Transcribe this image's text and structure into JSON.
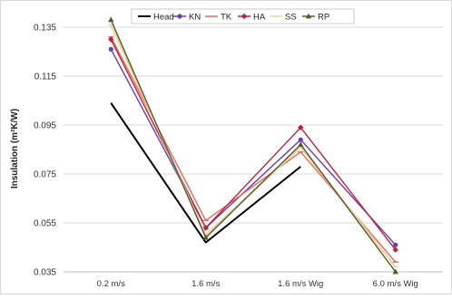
{
  "chart_data": {
    "type": "line",
    "title": "",
    "xlabel": "",
    "ylabel": "Insulation (m²K/W)",
    "categories": [
      "0.2 m/s",
      "1.6 m/s",
      "1.6 m/s Wig",
      "6.0 m/s Wig"
    ],
    "ylim": [
      0.035,
      0.135
    ],
    "yticks": [
      "0.135",
      "0.115",
      "0.095",
      "0.075",
      "0.055",
      "0.035"
    ],
    "ytick_values": [
      0.135,
      0.115,
      0.095,
      0.075,
      0.055,
      0.035
    ],
    "grid": true,
    "legend": "top",
    "series": [
      {
        "name": "Head",
        "color": "#000000",
        "marker": "none",
        "values": [
          0.104,
          0.047,
          0.078,
          null
        ]
      },
      {
        "name": "KN",
        "color": "#6a3fa8",
        "marker": "circle",
        "values": [
          0.126,
          0.053,
          0.089,
          0.046
        ]
      },
      {
        "name": "TK",
        "color": "#e8685f",
        "marker": "line",
        "values": [
          0.131,
          0.056,
          0.084,
          0.039
        ]
      },
      {
        "name": "HA",
        "color": "#c0203a",
        "marker": "diamond",
        "values": [
          0.13,
          0.053,
          0.094,
          0.044
        ]
      },
      {
        "name": "SS",
        "color": "#f1d3a0",
        "marker": "line",
        "values": [
          0.136,
          0.05,
          0.086,
          0.037
        ]
      },
      {
        "name": "RP",
        "color": "#4e5a30",
        "marker": "triangle",
        "values": [
          0.138,
          0.049,
          0.087,
          0.035
        ]
      }
    ]
  }
}
